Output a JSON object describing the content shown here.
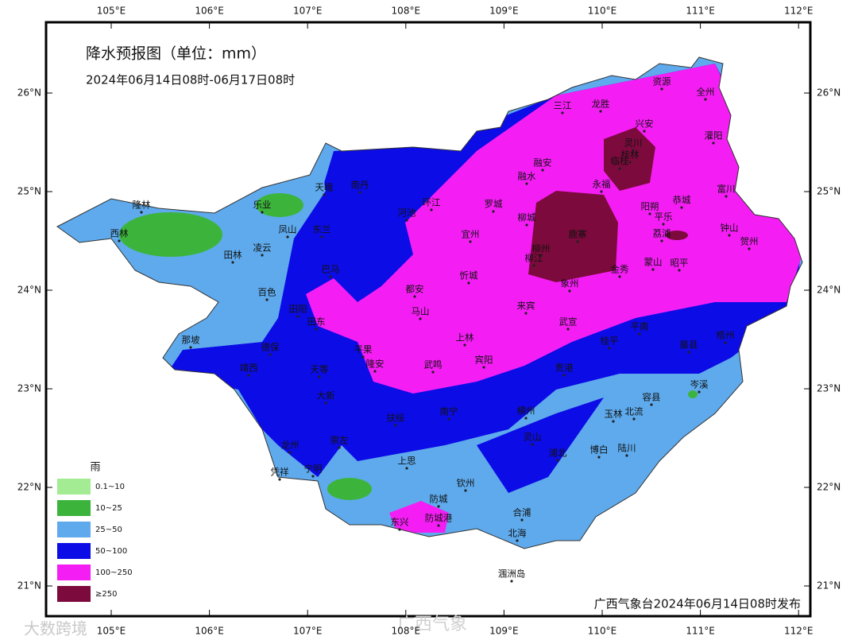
{
  "header": {
    "title": "降水预报图（单位：mm）",
    "subtitle": "2024年06月14日08时-06月17日08时"
  },
  "map": {
    "lon_ticks": [
      {
        "value": 105,
        "label": "105°E"
      },
      {
        "value": 106,
        "label": "106°E"
      },
      {
        "value": 107,
        "label": "107°E"
      },
      {
        "value": 108,
        "label": "108°E"
      },
      {
        "value": 109,
        "label": "109°E"
      },
      {
        "value": 110,
        "label": "110°E"
      },
      {
        "value": 111,
        "label": "111°E"
      },
      {
        "value": 112,
        "label": "112°E"
      }
    ],
    "lat_ticks": [
      {
        "value": 26,
        "label": "26°N"
      },
      {
        "value": 25,
        "label": "25°N"
      },
      {
        "value": 24,
        "label": "24°N"
      },
      {
        "value": 23,
        "label": "23°N"
      },
      {
        "value": 22,
        "label": "22°N"
      },
      {
        "value": 21,
        "label": "21°N"
      }
    ],
    "cities": [
      "隆林",
      "西林",
      "乐业",
      "天峨",
      "南丹",
      "环江",
      "三江",
      "龙胜",
      "资源",
      "全州",
      "兴安",
      "灌阳",
      "融安",
      "融水",
      "永福",
      "灵川",
      "桂林",
      "临桂",
      "罗城",
      "柳城",
      "鹿寨",
      "阳朔",
      "恭城",
      "平乐",
      "富川",
      "钟山",
      "贺州",
      "荔浦",
      "昭平",
      "蒙山",
      "金秀",
      "柳州",
      "柳江",
      "象州",
      "宜州",
      "河池",
      "东兰",
      "凤山",
      "田林",
      "凌云",
      "巴马",
      "百色",
      "田阳",
      "都安",
      "忻城",
      "马山",
      "来宾",
      "武宣",
      "田东",
      "上林",
      "宾阳",
      "桂平",
      "平南",
      "藤县",
      "梧州",
      "那坡",
      "德保",
      "靖西",
      "天等",
      "平果",
      "隆安",
      "武鸣",
      "贵港",
      "大新",
      "南宁",
      "横州",
      "扶绥",
      "容县",
      "岑溪",
      "玉林",
      "北流",
      "崇左",
      "龙州",
      "宁明",
      "凭祥",
      "灵山",
      "上思",
      "浦北",
      "博白",
      "陆川",
      "钦州",
      "防城",
      "防城港",
      "东兴",
      "合浦",
      "北海",
      "涠洲岛"
    ],
    "legend": {
      "title": "雨",
      "items": [
        {
          "label": "0.1~10",
          "color": "#a4ec94"
        },
        {
          "label": "10~25",
          "color": "#3cb43c"
        },
        {
          "label": "25~50",
          "color": "#5eaaec"
        },
        {
          "label": "50~100",
          "color": "#0c0ce6"
        },
        {
          "label": "100~250",
          "color": "#f41ef4"
        },
        {
          "label": "≥250",
          "color": "#7c0a3c"
        }
      ]
    },
    "source": "广西气象台2024年06月14日08时发布",
    "watermarks": [
      "大数跨境",
      "广西气象"
    ]
  }
}
